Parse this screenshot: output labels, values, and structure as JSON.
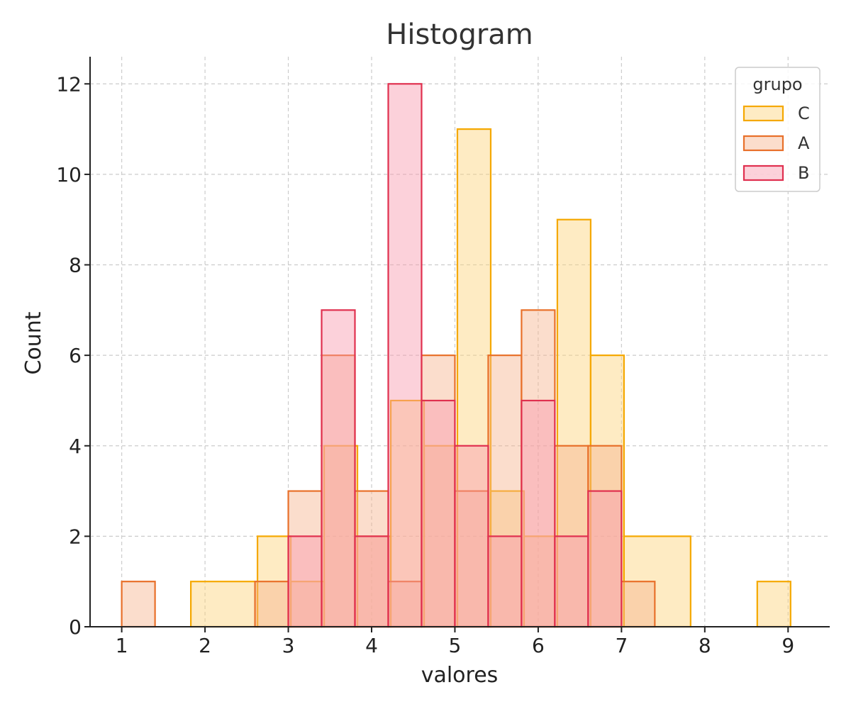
{
  "chart_data": {
    "type": "histogram",
    "title": "Histogram",
    "xlabel": "valores",
    "ylabel": "Count",
    "xlim": [
      0.62,
      9.5
    ],
    "ylim": [
      0,
      12.6
    ],
    "xticks": [
      1,
      2,
      3,
      4,
      5,
      6,
      7,
      8,
      9
    ],
    "yticks": [
      0,
      2,
      4,
      6,
      8,
      10,
      12
    ],
    "grid": true,
    "legend": {
      "title": "grupo",
      "placement": "top-right"
    },
    "series": [
      {
        "name": "C",
        "color": "#F5A800",
        "fill": "#FCD27A",
        "bins": [
          {
            "x0": 1.83,
            "x1": 2.63,
            "count": 1
          },
          {
            "x0": 2.63,
            "x1": 3.03,
            "count": 2
          },
          {
            "x0": 3.03,
            "x1": 3.43,
            "count": 1
          },
          {
            "x0": 3.43,
            "x1": 3.83,
            "count": 4
          },
          {
            "x0": 3.83,
            "x1": 4.23,
            "count": 2
          },
          {
            "x0": 4.23,
            "x1": 4.63,
            "count": 5
          },
          {
            "x0": 4.63,
            "x1": 5.03,
            "count": 4
          },
          {
            "x0": 5.03,
            "x1": 5.43,
            "count": 11
          },
          {
            "x0": 5.43,
            "x1": 5.83,
            "count": 3
          },
          {
            "x0": 5.83,
            "x1": 6.23,
            "count": 2
          },
          {
            "x0": 6.23,
            "x1": 6.63,
            "count": 9
          },
          {
            "x0": 6.63,
            "x1": 7.03,
            "count": 6
          },
          {
            "x0": 7.03,
            "x1": 7.83,
            "count": 2
          },
          {
            "x0": 8.63,
            "x1": 9.03,
            "count": 1
          }
        ]
      },
      {
        "name": "A",
        "color": "#E8702A",
        "fill": "#F7B38E",
        "bins": [
          {
            "x0": 1.0,
            "x1": 1.4,
            "count": 1
          },
          {
            "x0": 2.6,
            "x1": 3.0,
            "count": 1
          },
          {
            "x0": 3.0,
            "x1": 3.4,
            "count": 3
          },
          {
            "x0": 3.4,
            "x1": 3.8,
            "count": 6
          },
          {
            "x0": 3.8,
            "x1": 4.2,
            "count": 3
          },
          {
            "x0": 4.2,
            "x1": 4.6,
            "count": 1
          },
          {
            "x0": 4.6,
            "x1": 5.0,
            "count": 6
          },
          {
            "x0": 5.0,
            "x1": 5.4,
            "count": 3
          },
          {
            "x0": 5.4,
            "x1": 5.8,
            "count": 6
          },
          {
            "x0": 5.8,
            "x1": 6.2,
            "count": 7
          },
          {
            "x0": 6.2,
            "x1": 6.6,
            "count": 4
          },
          {
            "x0": 6.6,
            "x1": 7.0,
            "count": 4
          },
          {
            "x0": 7.0,
            "x1": 7.4,
            "count": 1
          }
        ]
      },
      {
        "name": "B",
        "color": "#E0304F",
        "fill": "#F89AAE",
        "bins": [
          {
            "x0": 3.0,
            "x1": 3.4,
            "count": 2
          },
          {
            "x0": 3.4,
            "x1": 3.8,
            "count": 7
          },
          {
            "x0": 3.8,
            "x1": 4.2,
            "count": 2
          },
          {
            "x0": 4.2,
            "x1": 4.6,
            "count": 12
          },
          {
            "x0": 4.6,
            "x1": 5.0,
            "count": 5
          },
          {
            "x0": 5.0,
            "x1": 5.4,
            "count": 4
          },
          {
            "x0": 5.4,
            "x1": 5.8,
            "count": 2
          },
          {
            "x0": 5.8,
            "x1": 6.2,
            "count": 5
          },
          {
            "x0": 6.2,
            "x1": 6.6,
            "count": 2
          },
          {
            "x0": 6.6,
            "x1": 7.0,
            "count": 3
          }
        ]
      }
    ]
  }
}
